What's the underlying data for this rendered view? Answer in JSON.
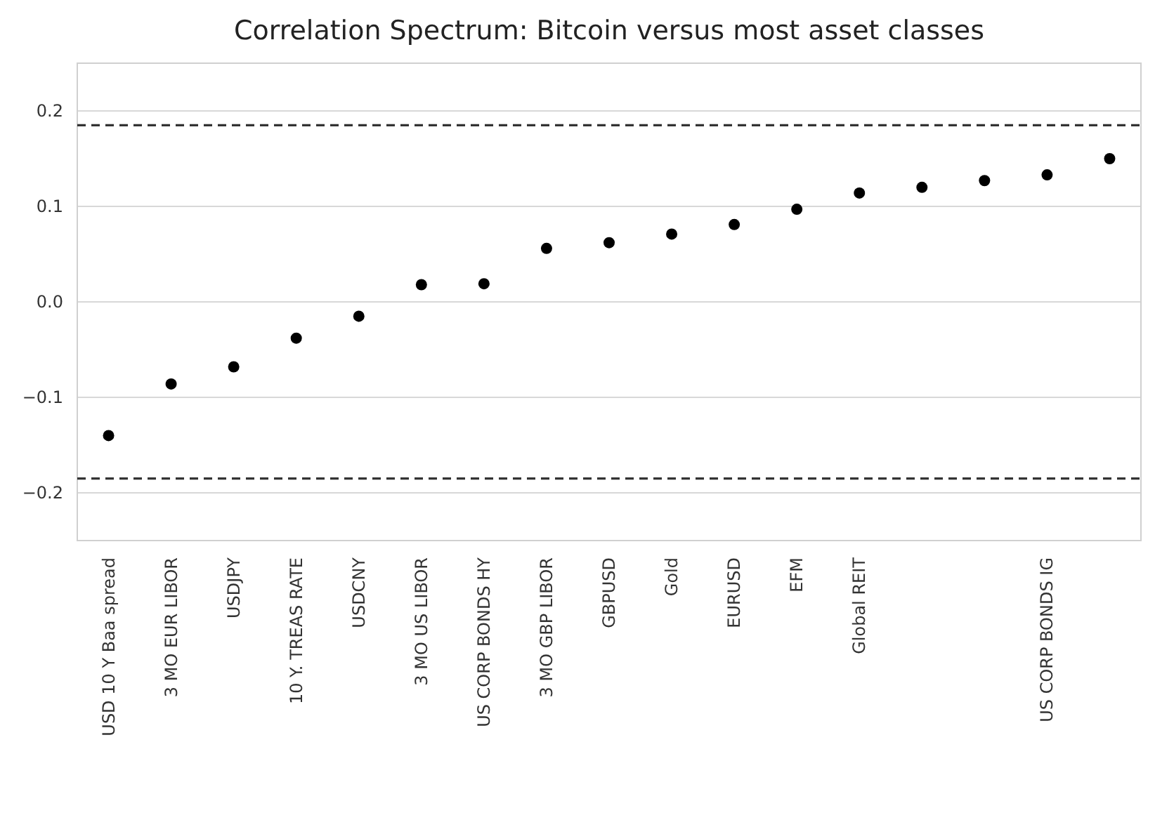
{
  "chart_data": {
    "type": "scatter",
    "title": "Correlation Spectrum: Bitcoin versus most asset classes",
    "categories": [
      "USD 10 Y Baa spread",
      "3 MO EUR LIBOR",
      "USDJPY",
      "10 Y. TREAS RATE",
      "USDCNY",
      "3 MO US LIBOR",
      "US CORP BONDS HY",
      "3 MO GBP LIBOR",
      "GBPUSD",
      "Gold",
      "EURUSD",
      "EFM",
      "Global REIT",
      null,
      null,
      "US CORP BONDS IG",
      null
    ],
    "values": [
      -0.14,
      -0.086,
      -0.068,
      -0.038,
      -0.015,
      0.018,
      0.019,
      0.056,
      0.062,
      0.071,
      0.081,
      0.097,
      0.114,
      0.12,
      0.127,
      0.133,
      0.15
    ],
    "color": "#000000",
    "marker": "circle",
    "ylim": [
      -0.25,
      0.25
    ],
    "yticks": [
      {
        "value": -0.2,
        "label": "−0.2"
      },
      {
        "value": -0.1,
        "label": "−0.1"
      },
      "0.0",
      0.1,
      0.2
    ],
    "grid": "y",
    "ref_lines": [
      {
        "axis": "y",
        "value": 0.185,
        "color": "#333333",
        "line_style": "dashed"
      },
      {
        "axis": "y",
        "value": -0.185,
        "color": "#333333",
        "line_style": "dashed"
      }
    ]
  }
}
